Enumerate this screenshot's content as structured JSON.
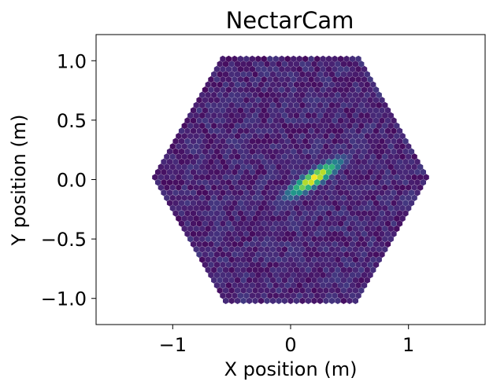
{
  "chart_data": {
    "type": "heatmap",
    "title": "NectarCam",
    "xlabel": "X position (m)",
    "ylabel": "Y position (m)",
    "xlim": [
      -1.65,
      1.65
    ],
    "ylim": [
      -1.22,
      1.22
    ],
    "x_ticks": [
      -1,
      0,
      1
    ],
    "x_tick_labels": [
      "−1",
      "0",
      "1"
    ],
    "y_ticks": [
      -1.0,
      -0.5,
      0.0,
      0.5,
      1.0
    ],
    "y_tick_labels": [
      "−1.0",
      "−0.5",
      "0.0",
      "0.5",
      "1.0"
    ],
    "grid": false,
    "colormap": "viridis",
    "camera": {
      "shape": "hexagon",
      "vertices": [
        [
          1.18,
          0.0
        ],
        [
          0.59,
          1.02
        ],
        [
          -0.59,
          1.02
        ],
        [
          -1.18,
          0.0
        ],
        [
          -0.59,
          -1.02
        ],
        [
          0.59,
          -1.02
        ]
      ],
      "pixel_spacing": 0.05,
      "background_level": 0.1
    },
    "image_features": {
      "shower": {
        "center": [
          0.2,
          0.01
        ],
        "length": 0.19,
        "width": 0.045,
        "angle_deg": 33,
        "peak_level": 1.0
      },
      "hotspots": [
        {
          "x": 0.13,
          "y": -0.05,
          "level": 1.0
        },
        {
          "x": 0.27,
          "y": 0.07,
          "level": 0.95
        }
      ]
    }
  }
}
